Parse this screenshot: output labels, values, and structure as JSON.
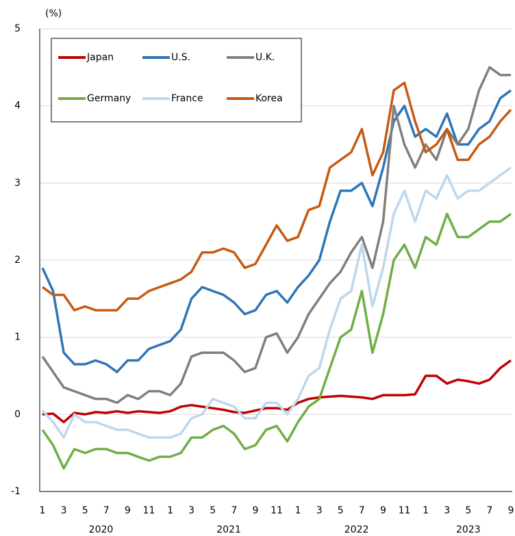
{
  "chart_data": {
    "type": "line",
    "y_axis_label": "(%)",
    "categories": [
      "1",
      null,
      "3",
      null,
      "5",
      null,
      "7",
      null,
      "9",
      null,
      "11",
      null,
      "1",
      null,
      "3",
      null,
      "5",
      null,
      "7",
      null,
      "9",
      null,
      "11",
      null,
      "1",
      null,
      "3",
      null,
      "5",
      null,
      "7",
      null,
      "9",
      null,
      "11",
      null,
      "1",
      null,
      "3",
      null,
      "5",
      null,
      "7",
      null,
      "9"
    ],
    "years": [
      "2020",
      "2021",
      "2022",
      "2023"
    ],
    "ylim": [
      -1,
      5
    ],
    "yticks": [
      -1,
      0,
      1,
      2,
      3,
      4,
      5
    ],
    "grid": true,
    "legend": "top-left",
    "series": [
      {
        "name": "Japan",
        "color": "#c00000",
        "values": [
          0,
          0.01,
          -0.1,
          0.02,
          0.0,
          0.03,
          0.02,
          0.04,
          0.02,
          0.04,
          0.03,
          0.02,
          0.04,
          0.1,
          0.12,
          0.1,
          0.08,
          0.06,
          0.03,
          0.02,
          0.05,
          0.08,
          0.08,
          0.06,
          0.15,
          0.2,
          0.22,
          0.23,
          0.24,
          0.23,
          0.22,
          0.2,
          0.25,
          0.25,
          0.25,
          0.26,
          0.5,
          0.5,
          0.4,
          0.45,
          0.43,
          0.4,
          0.45,
          0.6,
          0.7
        ]
      },
      {
        "name": "U.S.",
        "color": "#2e75b6",
        "values": [
          1.9,
          1.6,
          0.8,
          0.65,
          0.65,
          0.7,
          0.65,
          0.55,
          0.7,
          0.7,
          0.85,
          0.9,
          0.95,
          1.1,
          1.5,
          1.65,
          1.6,
          1.55,
          1.45,
          1.3,
          1.35,
          1.55,
          1.6,
          1.45,
          1.65,
          1.8,
          2.0,
          2.5,
          2.9,
          2.9,
          3.0,
          2.7,
          3.2,
          3.8,
          4.0,
          3.6,
          3.7,
          3.6,
          3.9,
          3.5,
          3.5,
          3.7,
          3.8,
          4.1,
          4.2
        ]
      },
      {
        "name": "U.K.",
        "color": "#7f7f7f",
        "values": [
          0.75,
          0.55,
          0.35,
          0.3,
          0.25,
          0.2,
          0.2,
          0.15,
          0.25,
          0.2,
          0.3,
          0.3,
          0.25,
          0.4,
          0.75,
          0.8,
          0.8,
          0.8,
          0.7,
          0.55,
          0.6,
          1.0,
          1.05,
          0.8,
          1.0,
          1.3,
          1.5,
          1.7,
          1.85,
          2.1,
          2.3,
          1.9,
          2.5,
          4.0,
          3.5,
          3.2,
          3.5,
          3.3,
          3.7,
          3.5,
          3.7,
          4.2,
          4.5,
          4.4,
          4.4
        ]
      },
      {
        "name": "Germany",
        "color": "#70ad47",
        "values": [
          -0.2,
          -0.4,
          -0.7,
          -0.45,
          -0.5,
          -0.45,
          -0.45,
          -0.5,
          -0.5,
          -0.55,
          -0.6,
          -0.55,
          -0.55,
          -0.5,
          -0.3,
          -0.3,
          -0.2,
          -0.15,
          -0.25,
          -0.45,
          -0.4,
          -0.2,
          -0.15,
          -0.35,
          -0.1,
          0.1,
          0.2,
          0.6,
          1.0,
          1.1,
          1.6,
          0.8,
          1.3,
          2.0,
          2.2,
          1.9,
          2.3,
          2.2,
          2.6,
          2.3,
          2.3,
          2.4,
          2.5,
          2.5,
          2.6
        ]
      },
      {
        "name": "France",
        "color": "#bdd7ee",
        "values": [
          0.05,
          -0.1,
          -0.3,
          0.0,
          -0.1,
          -0.1,
          -0.15,
          -0.2,
          -0.2,
          -0.25,
          -0.3,
          -0.3,
          -0.3,
          -0.25,
          -0.05,
          0.0,
          0.2,
          0.15,
          0.1,
          -0.05,
          -0.05,
          0.15,
          0.15,
          0.0,
          0.2,
          0.5,
          0.6,
          1.1,
          1.5,
          1.6,
          2.2,
          1.4,
          1.9,
          2.6,
          2.9,
          2.5,
          2.9,
          2.8,
          3.1,
          2.8,
          2.9,
          2.9,
          3.0,
          3.1,
          3.2
        ]
      },
      {
        "name": "Korea",
        "color": "#c55a11",
        "values": [
          1.65,
          1.55,
          1.55,
          1.35,
          1.4,
          1.35,
          1.35,
          1.35,
          1.5,
          1.5,
          1.6,
          1.65,
          1.7,
          1.75,
          1.85,
          2.1,
          2.1,
          2.15,
          2.1,
          1.9,
          1.95,
          2.2,
          2.45,
          2.25,
          2.3,
          2.65,
          2.7,
          3.2,
          3.3,
          3.4,
          3.7,
          3.1,
          3.4,
          4.2,
          4.3,
          3.8,
          3.4,
          3.5,
          3.7,
          3.3,
          3.3,
          3.5,
          3.6,
          3.8,
          3.95
        ]
      }
    ]
  }
}
